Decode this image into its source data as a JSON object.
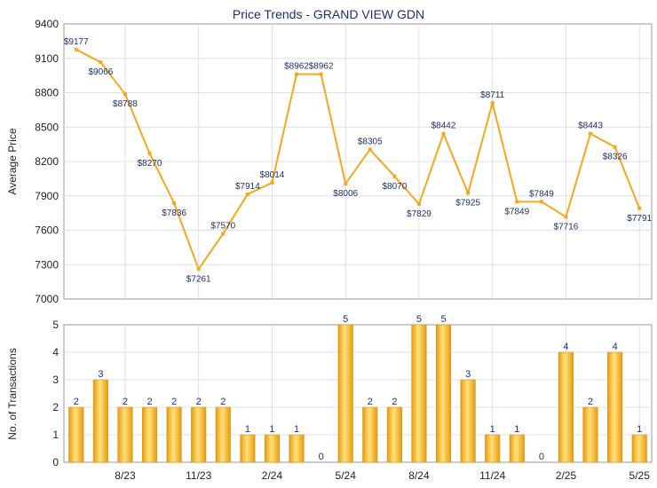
{
  "chart_data": [
    {
      "type": "line",
      "title": "Price Trends - GRAND VIEW GDN",
      "ylabel": "Average Price",
      "ylim": [
        7000,
        9400
      ],
      "yticks": [
        7000,
        7300,
        7600,
        7900,
        8200,
        8500,
        8800,
        9100,
        9400
      ],
      "color": "#f5a81c",
      "values": [
        9177,
        9066,
        8788,
        8270,
        7836,
        7261,
        7570,
        7914,
        8014,
        8962,
        8962,
        8006,
        8305,
        8070,
        7829,
        8442,
        7925,
        8711,
        7849,
        7849,
        7716,
        8443,
        8326,
        7791
      ],
      "labels": [
        "$9177",
        "$9066",
        "$8788",
        "$8270",
        "$7836",
        "$7261",
        "$7570",
        "$7914",
        "$8014",
        "$8962",
        "$8962",
        "$8006",
        "$8305",
        "$8070",
        "$7829",
        "$8442",
        "$7925",
        "$8711",
        "$7849",
        "$7849",
        "$7716",
        "$8443",
        "$8326",
        "$7791"
      ],
      "grid": true
    },
    {
      "type": "bar",
      "ylabel": "No. of Transactions",
      "ylim": [
        0,
        5
      ],
      "yticks": [
        0,
        1,
        2,
        3,
        4,
        5
      ],
      "color": "#f5b52a",
      "values": [
        2,
        3,
        2,
        2,
        2,
        2,
        2,
        1,
        1,
        1,
        0,
        5,
        2,
        2,
        5,
        5,
        3,
        1,
        1,
        0,
        4,
        2,
        4,
        1
      ],
      "xtick_labels": [
        {
          "index": 2,
          "label": "8/23"
        },
        {
          "index": 5,
          "label": "11/23"
        },
        {
          "index": 8,
          "label": "2/24"
        },
        {
          "index": 11,
          "label": "5/24"
        },
        {
          "index": 14,
          "label": "8/24"
        },
        {
          "index": 17,
          "label": "11/24"
        },
        {
          "index": 20,
          "label": "2/25"
        },
        {
          "index": 23,
          "label": "5/25"
        }
      ],
      "grid": true
    }
  ]
}
